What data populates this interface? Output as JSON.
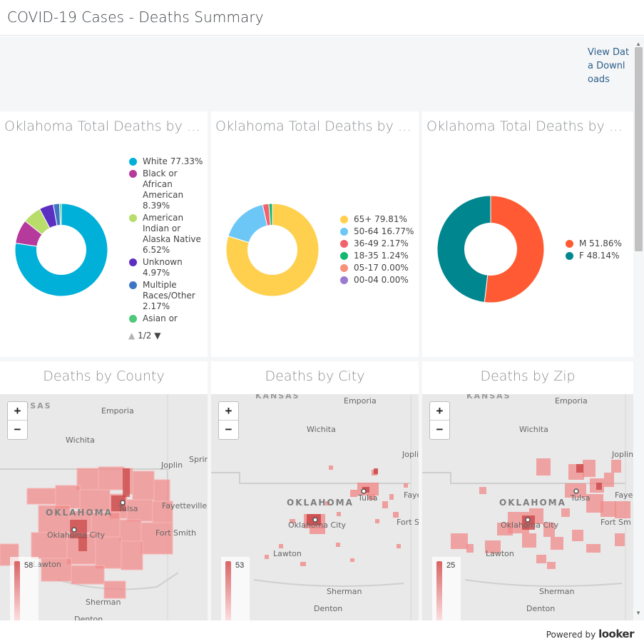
{
  "title": "COVID-19 Cases - Deaths Summary",
  "view_data_link": "View Data Downloads",
  "tiles": {
    "race": {
      "title": "Oklahoma Total Deaths by Race",
      "legend": [
        {
          "label": "White 77.33%",
          "color": "#00b0d8",
          "value": 77.33
        },
        {
          "label": "Black or African American 8.39%",
          "color": "#b63a9b",
          "value": 8.39
        },
        {
          "label": "American Indian or Alaska Native 6.52%",
          "color": "#b8dd6a",
          "value": 6.52
        },
        {
          "label": "Unknown 4.97%",
          "color": "#5a2fc2",
          "value": 4.97
        },
        {
          "label": "Multiple Races/Other 2.17%",
          "color": "#3d77c3",
          "value": 2.17
        },
        {
          "label": "Asian or Pacif...",
          "color": "#4ec87a",
          "value": 0.62
        }
      ],
      "pager": "1/2"
    },
    "age": {
      "title": "Oklahoma Total Deaths by Age Group",
      "legend": [
        {
          "label": "65+ 79.81%",
          "color": "#ffd04d",
          "value": 79.81
        },
        {
          "label": "50-64 16.77%",
          "color": "#6cc7f7",
          "value": 16.77
        },
        {
          "label": "36-49 2.17%",
          "color": "#f4616d",
          "value": 2.17
        },
        {
          "label": "18-35 1.24%",
          "color": "#13b86e",
          "value": 1.24
        },
        {
          "label": "05-17 0.00%",
          "color": "#f7917a",
          "value": 0.0
        },
        {
          "label": "00-04 0.00%",
          "color": "#9b7ad1",
          "value": 0.0
        }
      ]
    },
    "gender": {
      "title": "Oklahoma Total Deaths by Gender",
      "legend": [
        {
          "label": "M 51.86%",
          "color": "#ff5a33",
          "value": 51.86
        },
        {
          "label": "F 48.14%",
          "color": "#00868f",
          "value": 48.14
        }
      ]
    },
    "county": {
      "title": "Deaths by County",
      "scale_max": "58",
      "labels": {
        "kansas": "KANSAS",
        "emporia": "Emporia",
        "wichita": "Wichita",
        "joplin": "Joplin",
        "spring": "Sprin",
        "oklahoma": "OKLAHOMA",
        "tulsa": "Tulsa",
        "fayetteville": "Fayetteville",
        "okc": "Oklahoma City",
        "fortsmith": "Fort Smith",
        "lawton": "Lawton",
        "sherman": "Sherman",
        "denton": "Denton"
      }
    },
    "city": {
      "title": "Deaths by City",
      "scale_max": "53",
      "labels": {
        "kansas": "KANSAS",
        "emporia": "Emporia",
        "wichita": "Wichita",
        "joplin": "Jopli",
        "oklahoma": "OKLAHOMA",
        "tulsa": "Tulsa",
        "faye": "Faye",
        "okc": "Oklahoma City",
        "fortsmith": "Fort S",
        "lawton": "Lawton",
        "sherman": "Sherman",
        "denton": "Denton"
      }
    },
    "zip": {
      "title": "Deaths by Zip",
      "scale_max": "25",
      "labels": {
        "kansas": "KANSAS",
        "emporia": "Emporia",
        "wichita": "Wichita",
        "joplin": "Joplin",
        "oklahoma": "OKLAHOMA",
        "tulsa": "Tulsa",
        "faye": "Faye",
        "okc": "Oklahoma City",
        "fortsmith": "Fort Sm",
        "lawton": "Lawton",
        "sherman": "Sherman",
        "denton": "Denton"
      }
    }
  },
  "zoom": {
    "in": "+",
    "out": "−"
  },
  "footer": {
    "powered": "Powered by",
    "logo": "looker"
  },
  "icons": {
    "pager_up": "triangle-up-icon",
    "pager_down": "triangle-down-icon",
    "zoom_in": "plus-icon",
    "zoom_out": "minus-icon"
  }
}
